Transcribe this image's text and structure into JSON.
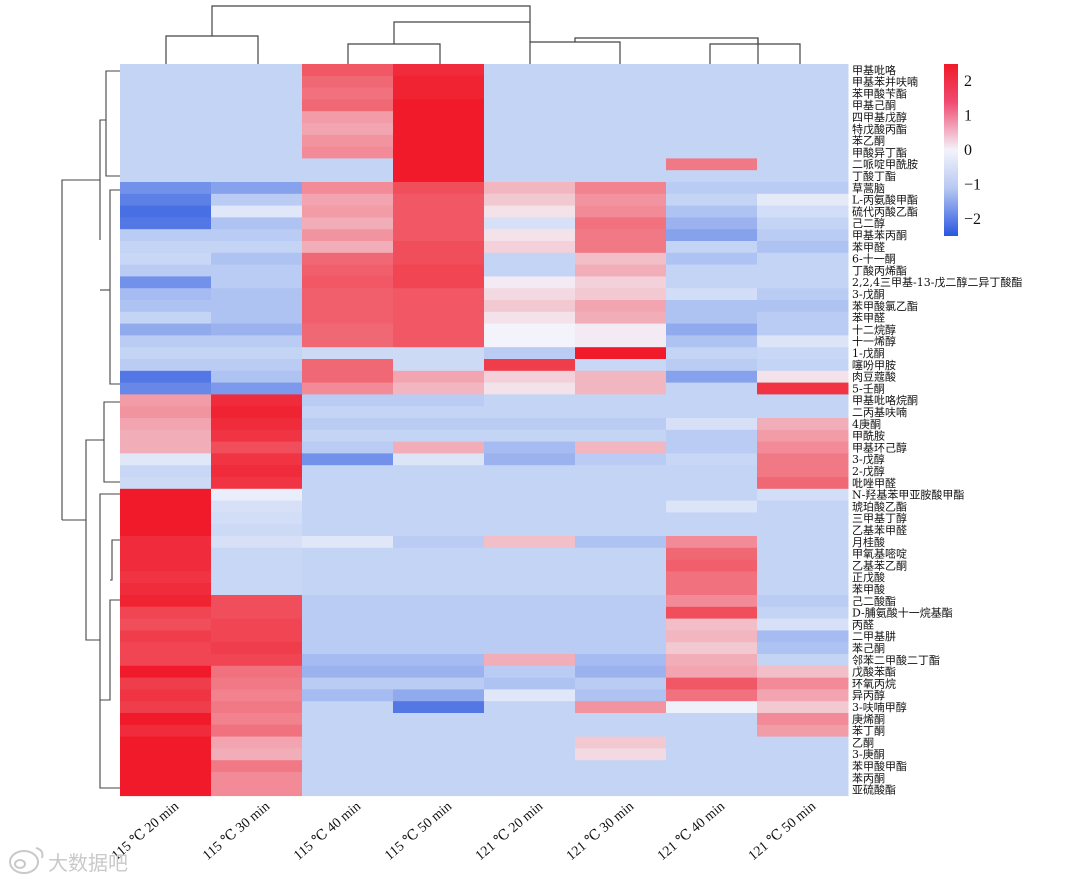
{
  "chart_data": {
    "type": "heatmap",
    "title": "",
    "columns": [
      "115 ℃ 20 min",
      "115 ℃ 30 min",
      "115 ℃ 40 min",
      "115 ℃ 50 min",
      "121 ℃ 20 min",
      "121 ℃ 30 min",
      "121 ℃ 40 min",
      "121 ℃ 50 min"
    ],
    "rows": [
      "甲基吡咯",
      "甲基苯并呋喃",
      "苯甲酸苄酯",
      "甲基己酮",
      "四甲基戊醇",
      "特戊酸丙酯",
      "苯乙酮",
      "甲酸异丁酯",
      "二哌啶甲酰胺",
      "丁酸丁酯",
      "草蒿脑",
      "L-丙氨酸甲酯",
      "硫代丙酸乙酯",
      "己二醇",
      "甲基苯丙酮",
      "苯甲醛",
      "6-十一酮",
      "丁酸丙烯酯",
      "2,2,4三甲基-13-戊二醇二异丁酸酯",
      "3-戊酮",
      "苯甲酸氯乙酯",
      "苯甲醛",
      "十二烷醇",
      "十一烯醇",
      "1-戊酮",
      "噻吩甲胺",
      "肉豆蔻酸",
      "5-壬酮",
      "甲基吡咯烷酮",
      "二丙基呋喃",
      "4庚酮",
      "甲酰胺",
      "甲基环己醇",
      "3-戊醇",
      "2-戊醇",
      "吡唑甲醛",
      "N-羟基苯甲亚胺酸甲酯",
      "琥珀酸乙酯",
      "三甲基丁醇",
      "乙基苯甲醛",
      "月桂酸",
      "甲氧基嘧啶",
      "乙基苯乙酮",
      "正戊酸",
      "苯甲酸",
      "己二酸酯",
      "D-脯氨酸十一烷基酯",
      "丙醛",
      "二甲基肼",
      "苯己酮",
      "邻苯二甲酸二丁酯",
      "戊酸苯酯",
      "环氧丙烷",
      "异丙醇",
      "3-呋喃甲醇",
      "庚烯酮",
      "苯丁酮",
      "乙酮",
      "3-庚酮",
      "苯甲酸甲酯",
      "苯丙酮",
      "亚硫酸酯"
    ],
    "values": [
      [
        -1,
        -1,
        1.8,
        2.3,
        -1,
        -1,
        -1,
        -1
      ],
      [
        -1,
        -1,
        1.6,
        2.4,
        -1,
        -1,
        -1,
        -1
      ],
      [
        -1,
        -1,
        1.5,
        2.4,
        -1,
        -1,
        -1,
        -1
      ],
      [
        -1,
        -1,
        1.6,
        2.5,
        -1,
        -1,
        -1,
        -1
      ],
      [
        -1,
        -1,
        1.0,
        2.5,
        -1,
        -1,
        -1,
        -1
      ],
      [
        -1,
        -1,
        0.9,
        2.5,
        -1,
        -1,
        -1,
        -1
      ],
      [
        -1,
        -1,
        1.1,
        2.5,
        -1,
        -1,
        -1,
        -1
      ],
      [
        -1,
        -1,
        1.2,
        2.5,
        -1,
        -1,
        -1,
        -1
      ],
      [
        -1,
        -1,
        -1,
        2.5,
        -1,
        -1,
        1.4,
        -1
      ],
      [
        -1,
        -1,
        -1,
        2.5,
        -1,
        -1,
        -1,
        -1
      ],
      [
        -1.8,
        -1.6,
        1.2,
        1.9,
        0.7,
        1.3,
        -1.1,
        -1.1
      ],
      [
        -2.0,
        -1.1,
        0.9,
        1.8,
        0.5,
        1.1,
        -1.0,
        -0.3
      ],
      [
        -2.2,
        -0.4,
        1.0,
        1.8,
        0.2,
        1.2,
        -1.2,
        -0.7
      ],
      [
        -2.1,
        -1.2,
        0.8,
        1.8,
        -0.6,
        1.5,
        -1.4,
        -1.0
      ],
      [
        -1.1,
        -1.1,
        1.1,
        1.8,
        0.2,
        1.4,
        -1.6,
        -1.1
      ],
      [
        -1.0,
        -1.0,
        0.8,
        1.9,
        0.4,
        1.4,
        -1.0,
        -1.2
      ],
      [
        -0.9,
        -1.2,
        1.6,
        1.9,
        -1.0,
        0.6,
        -1.2,
        -1.0
      ],
      [
        -1.1,
        -1.1,
        1.7,
        2.0,
        -1.0,
        0.8,
        -1.0,
        -1.0
      ],
      [
        -1.8,
        -1.1,
        1.8,
        2.0,
        0.1,
        0.4,
        -1.0,
        -1.0
      ],
      [
        -1.3,
        -1.2,
        1.7,
        1.8,
        0.3,
        0.5,
        -0.7,
        -1.1
      ],
      [
        -1.2,
        -1.2,
        1.7,
        1.8,
        0.5,
        0.9,
        -1.2,
        -1.2
      ],
      [
        -1.0,
        -1.2,
        1.7,
        1.8,
        0.2,
        0.8,
        -1.2,
        -1.1
      ],
      [
        -1.5,
        -1.4,
        1.6,
        1.8,
        0.0,
        0.1,
        -1.5,
        -1.1
      ],
      [
        -1.1,
        -1.1,
        1.6,
        1.8,
        0.0,
        0.1,
        -1.2,
        -0.5
      ],
      [
        -1.0,
        -1.0,
        -0.8,
        -0.8,
        -1.1,
        2.6,
        -1.0,
        -0.9
      ],
      [
        -1.1,
        -1.1,
        1.6,
        -0.8,
        2.1,
        -0.9,
        -1.1,
        -1.0
      ],
      [
        -2.1,
        -1.2,
        1.6,
        0.9,
        0.4,
        0.7,
        -1.6,
        0.2
      ],
      [
        -1.9,
        -1.7,
        1.2,
        0.7,
        0.2,
        0.7,
        -1.0,
        2.2
      ],
      [
        1.0,
        2.3,
        -1.1,
        -1.1,
        -1.0,
        -1.0,
        -1.0,
        -1.0
      ],
      [
        1.1,
        2.4,
        -1.0,
        -1.0,
        -1.0,
        -1.0,
        -1.0,
        -1.0
      ],
      [
        0.9,
        2.3,
        -1.1,
        -1.1,
        -1.1,
        -1.1,
        -0.6,
        0.8
      ],
      [
        0.8,
        2.2,
        -1.0,
        -1.0,
        -1.0,
        -1.0,
        -1.1,
        1.0
      ],
      [
        0.8,
        1.9,
        -1.1,
        0.8,
        -1.3,
        0.7,
        -1.1,
        1.2
      ],
      [
        -0.4,
        2.2,
        -1.8,
        -0.5,
        -1.4,
        -1.1,
        -0.9,
        1.4
      ],
      [
        -0.9,
        2.3,
        -1.0,
        -1.0,
        -1.0,
        -1.0,
        -1.0,
        1.4
      ],
      [
        -0.8,
        2.2,
        -1.0,
        -1.0,
        -1.0,
        -1.0,
        -1.0,
        1.6
      ],
      [
        2.6,
        -0.2,
        -1.0,
        -1.0,
        -1.0,
        -1.0,
        -1.0,
        -0.7
      ],
      [
        2.6,
        -0.6,
        -1.0,
        -1.0,
        -1.0,
        -1.0,
        -0.5,
        -1.0
      ],
      [
        2.6,
        -0.7,
        -1.0,
        -1.0,
        -1.0,
        -1.0,
        -1.0,
        -1.0
      ],
      [
        2.5,
        -0.8,
        -1.0,
        -1.0,
        -1.0,
        -1.0,
        -1.0,
        -1.0
      ],
      [
        2.3,
        -0.6,
        -0.4,
        -1.1,
        0.6,
        -1.2,
        1.2,
        -1.0
      ],
      [
        2.3,
        -0.9,
        -1.0,
        -1.0,
        -1.0,
        -1.0,
        1.6,
        -1.0
      ],
      [
        2.3,
        -0.9,
        -1.0,
        -1.0,
        -1.0,
        -1.0,
        1.7,
        -1.0
      ],
      [
        2.2,
        -0.9,
        -1.0,
        -1.0,
        -1.0,
        -1.0,
        1.5,
        -1.0
      ],
      [
        2.3,
        -0.9,
        -1.0,
        -1.0,
        -1.0,
        -1.0,
        1.5,
        -1.0
      ],
      [
        2.4,
        1.9,
        -1.1,
        -1.1,
        -1.1,
        -1.1,
        1.2,
        -1.1
      ],
      [
        2.0,
        1.9,
        -1.1,
        -1.1,
        -1.1,
        -1.1,
        1.9,
        -1.0
      ],
      [
        1.9,
        2.0,
        -1.1,
        -1.1,
        -1.1,
        -1.1,
        0.6,
        -0.6
      ],
      [
        2.1,
        2.0,
        -1.1,
        -1.1,
        -1.1,
        -1.1,
        0.7,
        -1.3
      ],
      [
        2.0,
        2.1,
        -1.1,
        -1.1,
        -1.1,
        -1.1,
        0.5,
        -1.2
      ],
      [
        2.0,
        2.0,
        -1.3,
        -1.3,
        0.8,
        -1.3,
        0.8,
        -1.0
      ],
      [
        2.5,
        1.5,
        -1.4,
        -1.4,
        -1.1,
        -1.4,
        0.9,
        0.6
      ],
      [
        2.1,
        1.4,
        -1.1,
        -1.1,
        -1.2,
        -1.1,
        1.8,
        1.2
      ],
      [
        2.2,
        1.3,
        -1.3,
        -1.5,
        -0.4,
        -1.2,
        1.5,
        0.9
      ],
      [
        2.1,
        1.4,
        -1.0,
        -2.1,
        -1.0,
        1.1,
        -0.1,
        0.5
      ],
      [
        2.5,
        1.3,
        -1.0,
        -1.0,
        -1.0,
        -1.0,
        -1.0,
        1.2
      ],
      [
        2.3,
        1.5,
        -1.0,
        -1.0,
        -1.0,
        -1.0,
        -1.0,
        1.0
      ],
      [
        2.6,
        0.9,
        -1.0,
        -1.0,
        -1.0,
        0.5,
        -1.0,
        -1.0
      ],
      [
        2.6,
        0.8,
        -1.0,
        -1.0,
        -1.0,
        0.3,
        -1.0,
        -1.0
      ],
      [
        2.6,
        1.4,
        -1.0,
        -1.0,
        -1.0,
        -1.0,
        -1.0,
        -1.0
      ],
      [
        2.6,
        1.2,
        -1.0,
        -1.0,
        -1.0,
        -1.0,
        -1.0,
        -1.0
      ],
      [
        2.6,
        1.2,
        -1.0,
        -1.0,
        -1.0,
        -1.0,
        -1.0,
        -1.0
      ]
    ],
    "colorbar": {
      "ticks": [
        {
          "label": "2",
          "value": 2
        },
        {
          "label": "1",
          "value": 1
        },
        {
          "label": "0",
          "value": 0
        },
        {
          "label": "−1",
          "value": -1
        },
        {
          "label": "−2",
          "value": -2
        }
      ],
      "range": [
        -2.5,
        2.5
      ],
      "low_color": "#2a56e0",
      "mid_color": "#f3f3fb",
      "high_color": "#f01a2a"
    },
    "column_dendrogram": true,
    "row_dendrogram": true
  },
  "watermark": {
    "text": "大数据吧"
  }
}
